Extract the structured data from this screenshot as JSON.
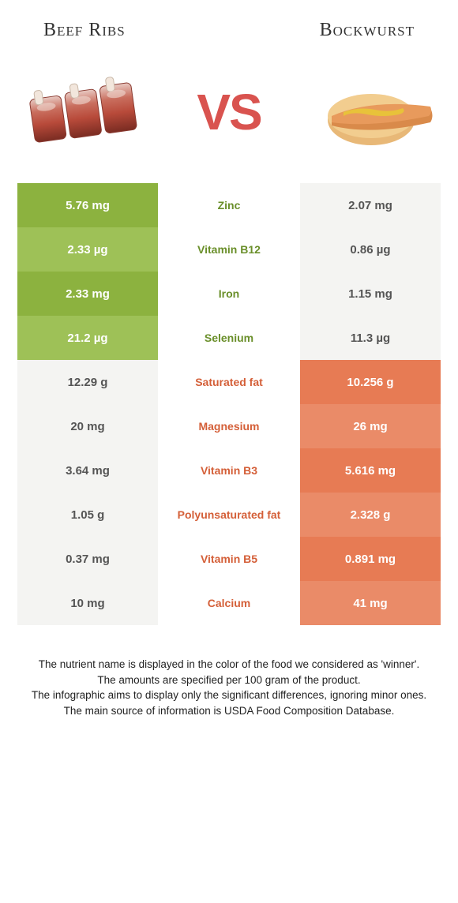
{
  "foods": {
    "left": {
      "name": "Beef Ribs"
    },
    "right": {
      "name": "Bockwurst"
    }
  },
  "vs_label": "VS",
  "colors": {
    "left_primary": "#8cb23f",
    "left_alt": "#9ec157",
    "right_primary": "#e77b54",
    "right_alt": "#ea8b68",
    "mid_left_text": "#6a8f2a",
    "mid_right_text": "#d45f38",
    "left_loser": "#f4f4f2",
    "right_loser": "#f4f4f2",
    "loser_text": "#555555"
  },
  "rows": [
    {
      "nutrient": "Zinc",
      "left": "5.76 mg",
      "right": "2.07 mg",
      "winner": "left"
    },
    {
      "nutrient": "Vitamin B12",
      "left": "2.33 µg",
      "right": "0.86 µg",
      "winner": "left"
    },
    {
      "nutrient": "Iron",
      "left": "2.33 mg",
      "right": "1.15 mg",
      "winner": "left"
    },
    {
      "nutrient": "Selenium",
      "left": "21.2 µg",
      "right": "11.3 µg",
      "winner": "left"
    },
    {
      "nutrient": "Saturated fat",
      "left": "12.29 g",
      "right": "10.256 g",
      "winner": "right"
    },
    {
      "nutrient": "Magnesium",
      "left": "20 mg",
      "right": "26 mg",
      "winner": "right"
    },
    {
      "nutrient": "Vitamin B3",
      "left": "3.64 mg",
      "right": "5.616 mg",
      "winner": "right"
    },
    {
      "nutrient": "Polyunsaturated fat",
      "left": "1.05 g",
      "right": "2.328 g",
      "winner": "right"
    },
    {
      "nutrient": "Vitamin B5",
      "left": "0.37 mg",
      "right": "0.891 mg",
      "winner": "right"
    },
    {
      "nutrient": "Calcium",
      "left": "10 mg",
      "right": "41 mg",
      "winner": "right"
    }
  ],
  "footer": {
    "line1": "The nutrient name is displayed in the color of the food we considered as 'winner'.",
    "line2": "The amounts are specified per 100 gram of the product.",
    "line3": "The infographic aims to display only the significant differences, ignoring minor ones.",
    "line4": "The main source of information is USDA Food Composition Database."
  }
}
